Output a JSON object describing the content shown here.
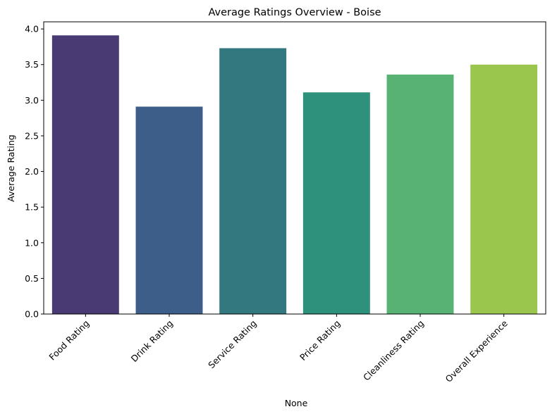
{
  "chart_data": {
    "type": "bar",
    "title": "Average Ratings Overview - Boise",
    "xlabel": "None",
    "ylabel": "Average Rating",
    "categories": [
      "Food Rating",
      "Drink Rating",
      "Service Rating",
      "Price Rating",
      "Cleanliness Rating",
      "Overall Experience"
    ],
    "values": [
      3.91,
      2.91,
      3.73,
      3.11,
      3.36,
      3.5
    ],
    "colors": [
      "#4a3a74",
      "#3e5e8a",
      "#33777f",
      "#2e917b",
      "#58b273",
      "#9ac64e"
    ],
    "ylim": [
      0,
      4.1
    ],
    "yticks": [
      0,
      0.5,
      1,
      1.5,
      2,
      2.5,
      3,
      3.5,
      4
    ],
    "ytick_labels": [
      "0.0",
      "0.5",
      "1.0",
      "1.5",
      "2.0",
      "2.5",
      "3.0",
      "3.5",
      "4.0"
    ],
    "grid": false,
    "legend": "none"
  }
}
